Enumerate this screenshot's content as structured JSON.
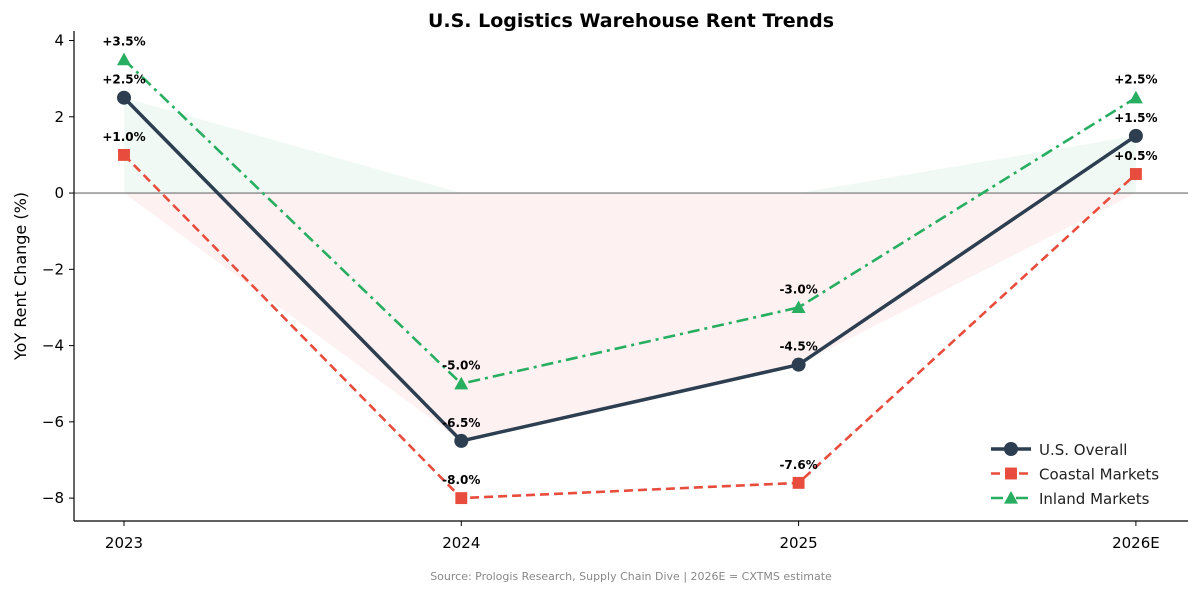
{
  "chart_data": {
    "type": "line",
    "title": "U.S. Logistics Warehouse Rent Trends",
    "ylabel": "YoY Rent Change (%)",
    "xlabel": "",
    "categories": [
      "2023",
      "2024",
      "2025",
      "2026E"
    ],
    "ylim": [
      -8.6,
      4.25
    ],
    "yticks": [
      4,
      2,
      0,
      -2,
      -4,
      -6,
      -8
    ],
    "ytick_labels": [
      "4",
      "2",
      "0",
      "−2",
      "−4",
      "−6",
      "−8"
    ],
    "grid": false,
    "legend_position": "bottom-right",
    "series": [
      {
        "name": "U.S. Overall",
        "values": [
          2.5,
          -6.5,
          -4.5,
          1.5
        ],
        "labels": [
          "+2.5%",
          "-6.5%",
          "-4.5%",
          "+1.5%"
        ],
        "color": "#2c3e50",
        "marker": "circle",
        "linestyle": "solid"
      },
      {
        "name": "Coastal Markets",
        "values": [
          1.0,
          -8.0,
          -7.6,
          0.5
        ],
        "labels": [
          "+1.0%",
          "-8.0%",
          "-7.6%",
          "+0.5%"
        ],
        "color": "#e74c3c",
        "marker": "square",
        "linestyle": "dashed"
      },
      {
        "name": "Inland Markets",
        "values": [
          3.5,
          -5.0,
          -3.0,
          2.5
        ],
        "labels": [
          "+3.5%",
          "-5.0%",
          "-3.0%",
          "+2.5%"
        ],
        "color": "#27ae60",
        "marker": "triangle",
        "linestyle": "dashdot"
      }
    ],
    "fill_colors": {
      "positive": "#27ae60",
      "negative": "#e74c3c"
    },
    "source_note": "Source: Prologis Research, Supply Chain Dive | 2026E = CXTMS estimate"
  }
}
